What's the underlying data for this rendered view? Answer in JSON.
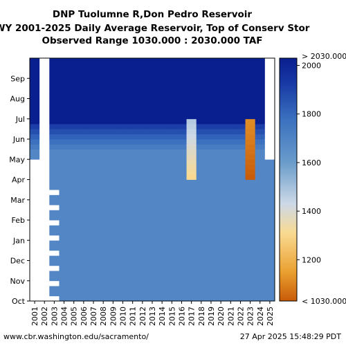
{
  "title": {
    "line1": "DNP Tuolumne R,Don Pedro Reservoir",
    "line2": "WY 2001-2025 Daily Average Reservoir, Top of Conserv Stor",
    "line3": "Observed Range 1030.000 : 2030.000 TAF"
  },
  "footer": {
    "left": "www.cbr.washington.edu/sacramento/",
    "right": "27 Apr 2025 15:48:29 PDT"
  },
  "colors": {
    "high": "#0a1f8f",
    "mid_high": "#1c4fb0",
    "mid": "#6a9ccb",
    "low_mid": "#f7d08a",
    "low": "#c75a08",
    "missing": "#ffffff"
  },
  "chart_data": {
    "type": "heatmap",
    "title": "DNP Tuolumne R,Don Pedro Reservoir",
    "x_label": "",
    "y_label": "",
    "x_categories": [
      "2001",
      "2002",
      "2003",
      "2004",
      "2005",
      "2006",
      "2007",
      "2008",
      "2009",
      "2010",
      "2011",
      "2012",
      "2013",
      "2014",
      "2015",
      "2016",
      "2017",
      "2018",
      "2019",
      "2020",
      "2021",
      "2022",
      "2023",
      "2024",
      "2025"
    ],
    "y_categories": [
      "Oct",
      "Nov",
      "Dec",
      "Jan",
      "Feb",
      "Mar",
      "Apr",
      "May",
      "Jun",
      "Jul",
      "Aug",
      "Sep"
    ],
    "colorbar": {
      "min": 1030,
      "max": 2030,
      "ticks": [
        1200,
        1400,
        1600,
        1800,
        2000
      ],
      "top_label": "> 2030.000",
      "bottom_label": "< 1030.000",
      "tick_labels": [
        "1200",
        "1400",
        "1600",
        "1800",
        "2000"
      ]
    },
    "typical_values_taf": {
      "oct_to_mid_may": 1690,
      "mid_may_to_jun": 1850,
      "jun_to_sep": 2030
    },
    "notable_years": [
      {
        "year": "2017",
        "months": "Apr-Jun",
        "value_taf_min": 1300
      },
      {
        "year": "2023",
        "months": "Apr-Jun",
        "value_taf_min": 1030
      },
      {
        "year": "2025",
        "months": "May-Sep",
        "note": "no data after Apr 27"
      }
    ],
    "missing_data": {
      "2001": "Oct-Apr largely missing",
      "2002": "mostly missing",
      "2003": "Oct-Mar partially missing"
    }
  }
}
